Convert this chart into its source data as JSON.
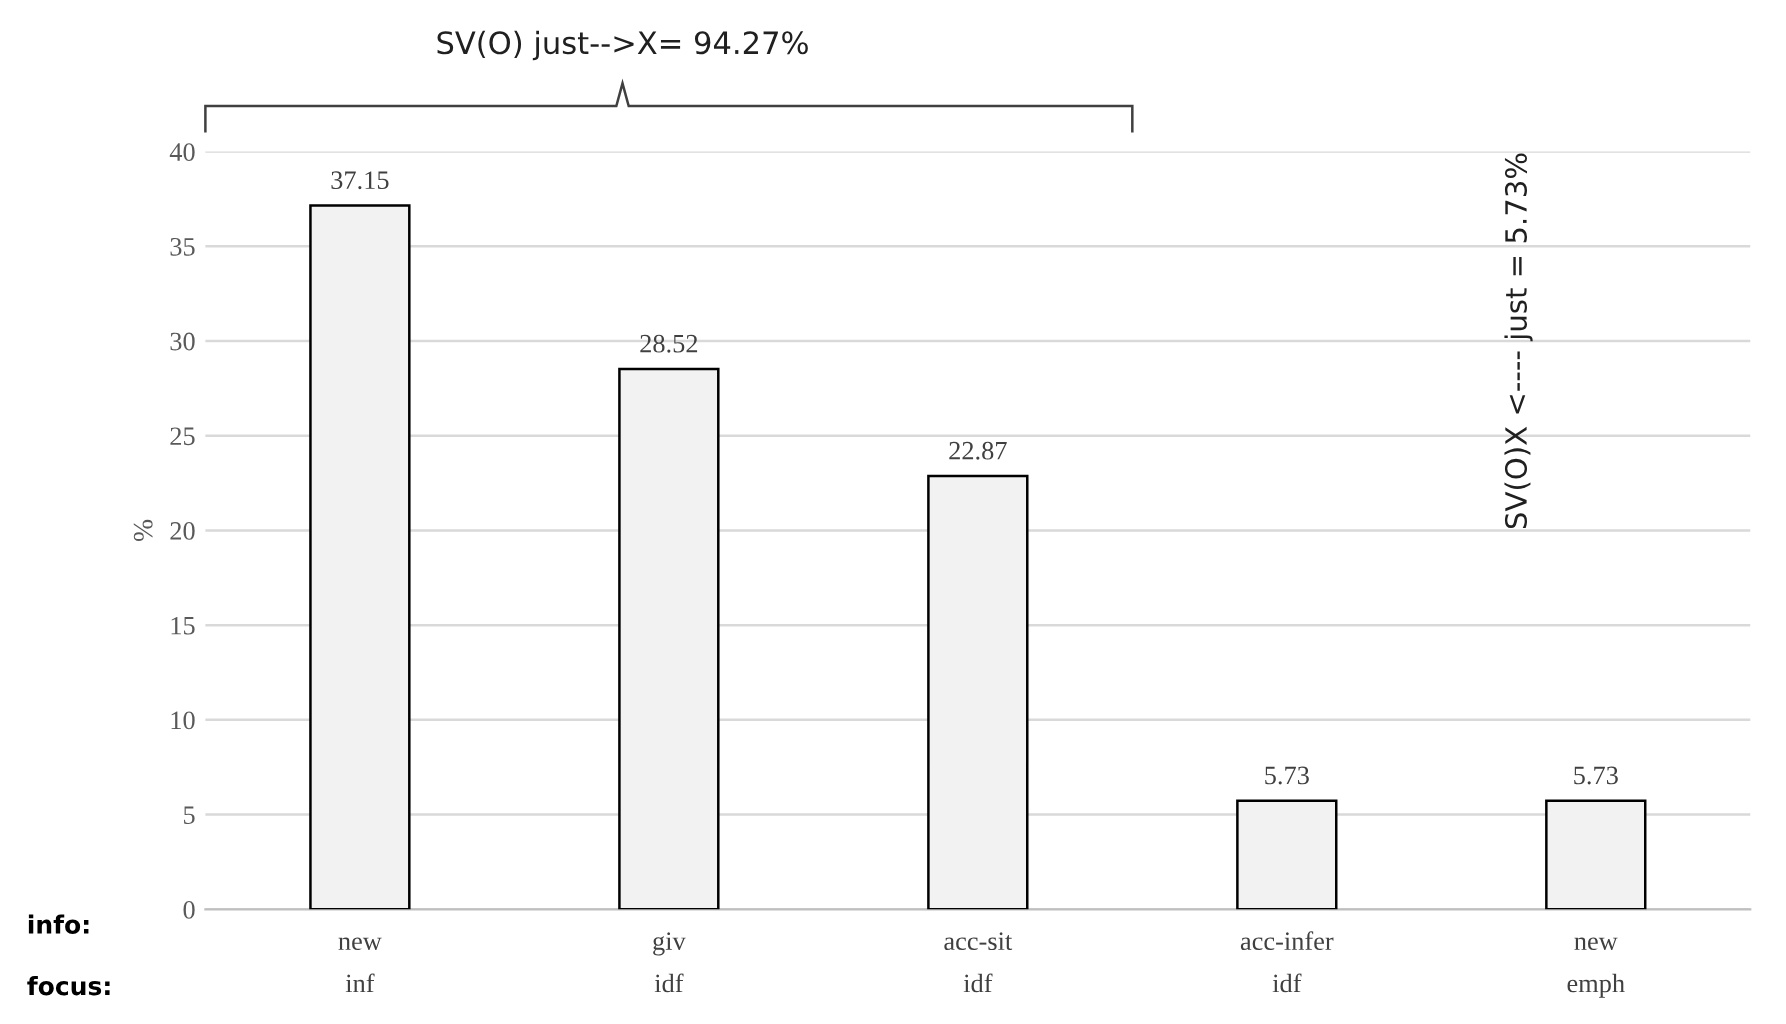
{
  "chart_data": {
    "type": "bar",
    "ylabel": "%",
    "categories": [
      "new\ninf",
      "giv\nidf",
      "acc-sit\nidf",
      "acc-infer\nidf",
      "new\nemph"
    ],
    "values": [
      37.15,
      28.52,
      22.87,
      5.73,
      5.73
    ],
    "color": "#f2f2f2",
    "ylim": [
      0,
      40
    ],
    "yticks": [
      0,
      5,
      10,
      15,
      20,
      25,
      30,
      35,
      40
    ],
    "grid": "y",
    "data_labels": true,
    "annotations": [
      "SV(O) just-->X= 94.27%",
      "SV(O)X <---- just = 5.73%",
      "info:",
      "focus:"
    ]
  }
}
